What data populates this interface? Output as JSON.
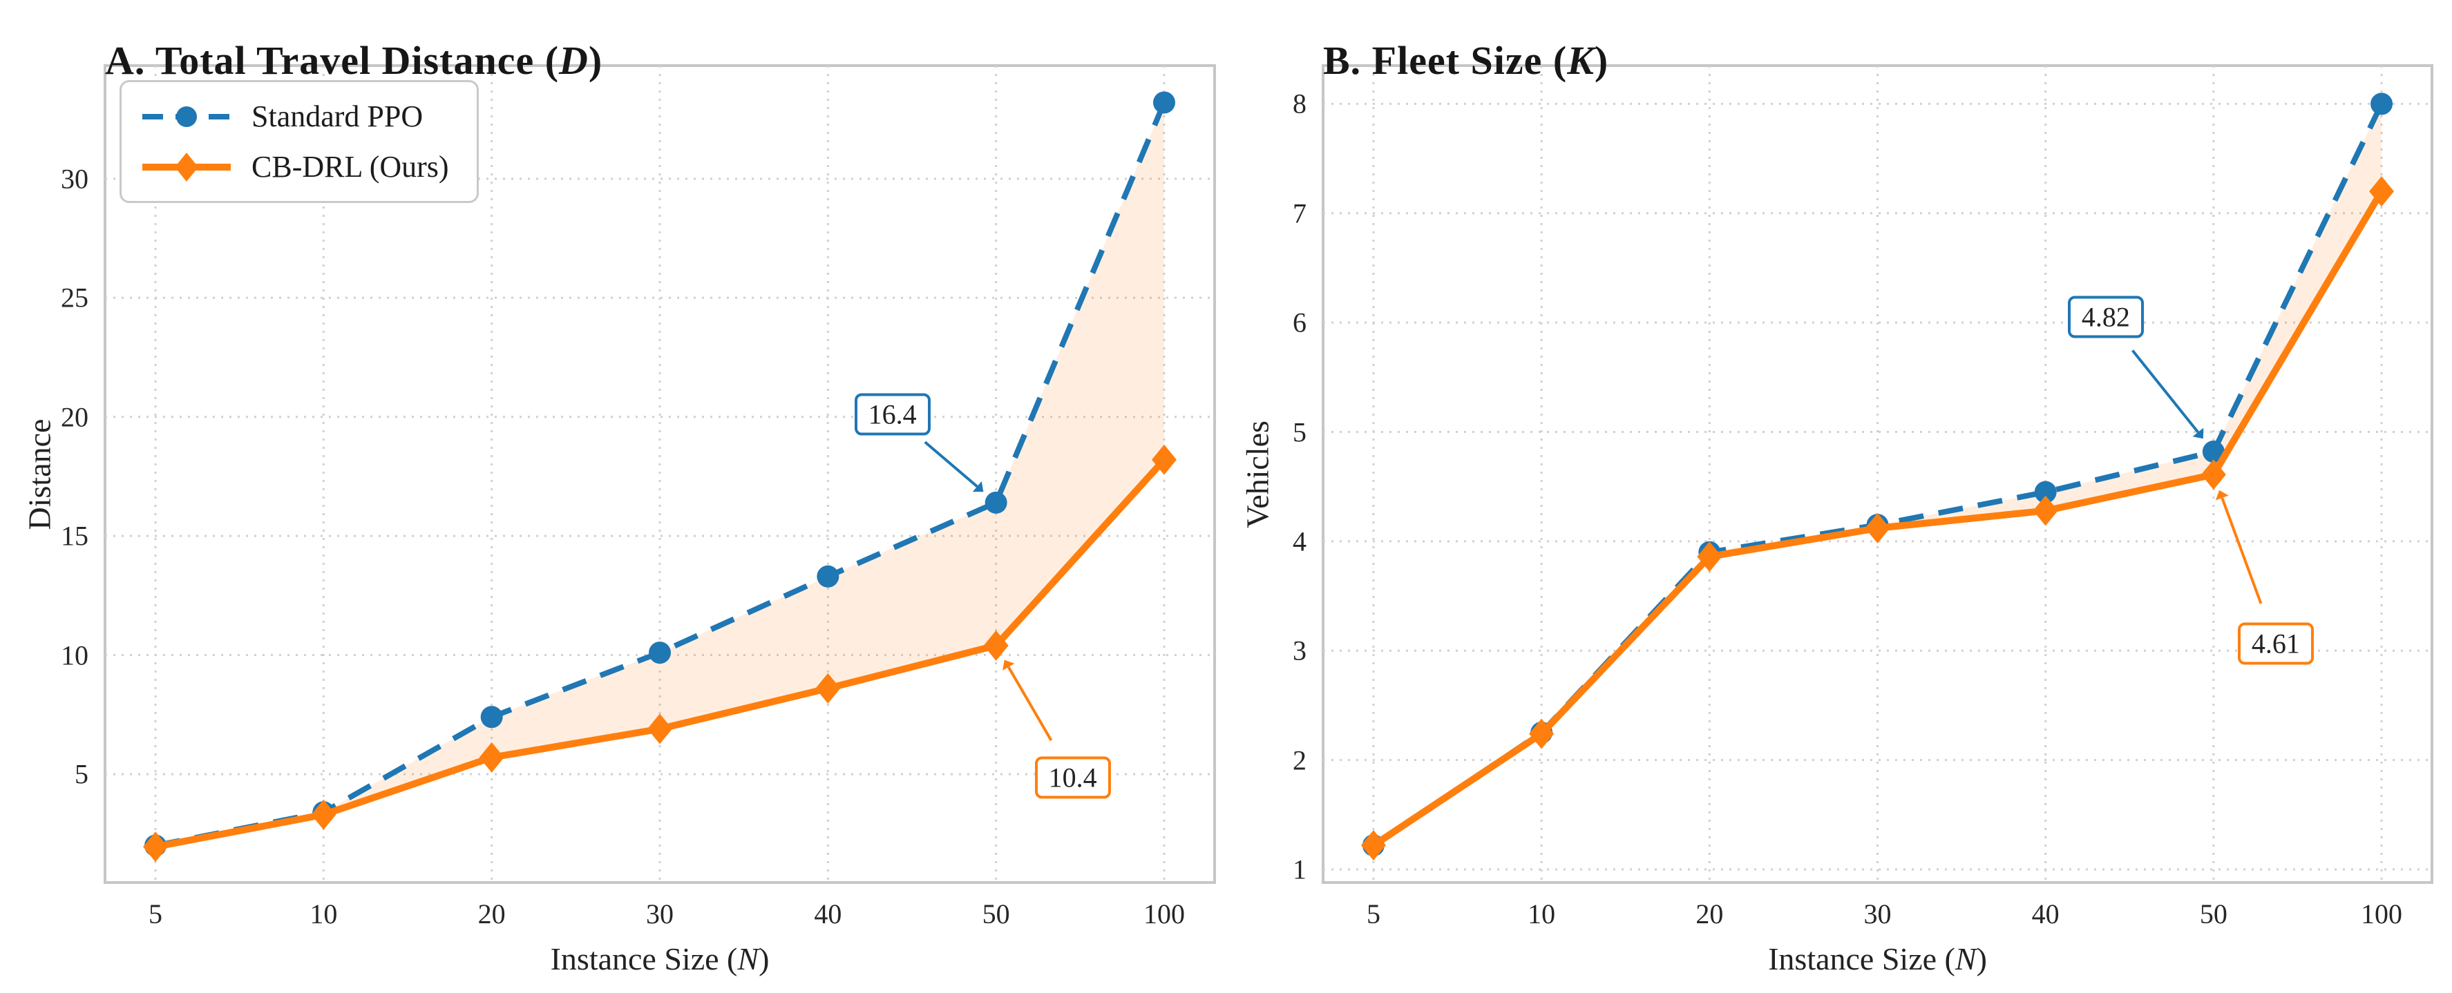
{
  "palette": {
    "ppo_blue": "#1f77b4",
    "ours_orange": "#ff7f0e",
    "fill_orange": "#ff7f0e",
    "grid_gray": "#d0d0d0",
    "spine_gray": "#c6c6c6"
  },
  "chart_data": [
    {
      "panel": "A",
      "type": "line",
      "title_pre": "A. Total Travel Distance (",
      "title_var": "D",
      "title_post": ")",
      "xlabel_pre": "Instance Size (",
      "xlabel_var": "N",
      "xlabel_post": ")",
      "ylabel": "Distance",
      "categories": [
        "5",
        "10",
        "20",
        "30",
        "40",
        "50",
        "100"
      ],
      "yticks": [
        "5",
        "10",
        "15",
        "20",
        "25",
        "30"
      ],
      "ylim": [
        0.45,
        34.75
      ],
      "grid": true,
      "legend_position": "upper-left",
      "series": [
        {
          "name": "Standard PPO",
          "color": "#1f77b4",
          "line_style": "dashed",
          "marker": "circle",
          "values": [
            2.0,
            3.4,
            7.4,
            10.1,
            13.3,
            16.4,
            33.2
          ]
        },
        {
          "name": "CB-DRL (Ours)",
          "color": "#ff7f0e",
          "line_style": "solid",
          "marker": "diamond",
          "values": [
            1.95,
            3.3,
            5.7,
            6.9,
            8.6,
            10.4,
            18.2
          ]
        }
      ],
      "fill_between": {
        "color": "#ff7f0e",
        "opacity": 0.13
      },
      "annotations": [
        {
          "label": "16.4",
          "series": 0,
          "category_index": 5,
          "color": "#1f77b4"
        },
        {
          "label": "10.4",
          "series": 1,
          "category_index": 5,
          "color": "#ff7f0e"
        }
      ]
    },
    {
      "panel": "B",
      "type": "line",
      "title_pre": "B. Fleet Size (",
      "title_var": "K",
      "title_post": ")",
      "xlabel_pre": "Instance Size (",
      "xlabel_var": "N",
      "xlabel_post": ")",
      "ylabel": "Vehicles",
      "categories": [
        "5",
        "10",
        "20",
        "30",
        "40",
        "50",
        "100"
      ],
      "yticks": [
        "1",
        "2",
        "3",
        "4",
        "5",
        "6",
        "7",
        "8"
      ],
      "ylim": [
        0.88,
        8.35
      ],
      "grid": true,
      "legend_position": "none",
      "series": [
        {
          "name": "Standard PPO",
          "color": "#1f77b4",
          "line_style": "dashed",
          "marker": "circle",
          "values": [
            1.22,
            2.25,
            3.9,
            4.15,
            4.45,
            4.82,
            8.0
          ]
        },
        {
          "name": "CB-DRL (Ours)",
          "color": "#ff7f0e",
          "line_style": "solid",
          "marker": "diamond",
          "values": [
            1.22,
            2.24,
            3.86,
            4.12,
            4.28,
            4.61,
            7.2
          ]
        }
      ],
      "fill_between": {
        "color": "#ff7f0e",
        "opacity": 0.13
      },
      "annotations": [
        {
          "label": "4.82",
          "series": 0,
          "category_index": 5,
          "color": "#1f77b4"
        },
        {
          "label": "4.61",
          "series": 1,
          "category_index": 5,
          "color": "#ff7f0e"
        }
      ]
    }
  ]
}
